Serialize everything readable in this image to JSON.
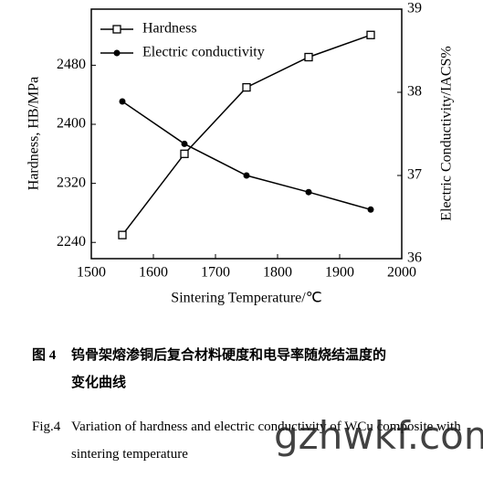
{
  "chart_data": {
    "type": "line",
    "x_label": "Sintering Temperature/℃",
    "y_label": "Hardness, HB/MPa",
    "y2_label": "Electric Conductivity/IACS%",
    "x": [
      1550,
      1650,
      1750,
      1850,
      1950
    ],
    "xlim": [
      1500,
      2000
    ],
    "xticks": [
      1500,
      1600,
      1700,
      1800,
      1900,
      2000
    ],
    "ylim": [
      2218,
      2556
    ],
    "yticks": [
      2240,
      2320,
      2400,
      2480
    ],
    "y2lim": [
      36,
      39
    ],
    "y2ticks": [
      36,
      37,
      38,
      39
    ],
    "legend": "top-left",
    "series": [
      {
        "name": "Hardness",
        "color": "#000000",
        "marker": "square",
        "values": [
          2250,
          2360,
          2450,
          2491,
          2521
        ]
      },
      {
        "name": "Electric conductivity",
        "color": "#000000",
        "marker": "circle",
        "axis": "y2",
        "values": [
          37.89,
          37.38,
          37.0,
          36.8,
          36.59
        ]
      }
    ]
  },
  "caption": {
    "zh_label": "图 4",
    "zh_text": "钨骨架熔渗铜后复合材料硬度和电导率随烧结温度的变化曲线",
    "en_label": "Fig.4",
    "en_text": "Variation of hardness and electric conductivity of WCu composite with sintering temperature"
  },
  "watermark": "gzhwkf.com"
}
